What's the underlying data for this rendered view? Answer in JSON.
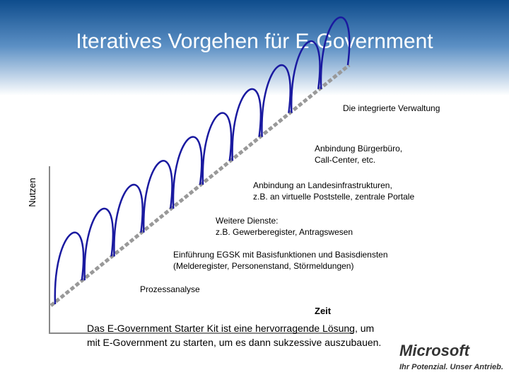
{
  "header": {
    "title": "Iteratives Vorgehen für E-Government"
  },
  "axes": {
    "y_label": "Nutzen",
    "x_label": "Zeit"
  },
  "stages": [
    {
      "lines": [
        "Prozessanalyse"
      ]
    },
    {
      "lines": [
        "Einführung EGSK mit Basisfunktionen und Basisdiensten",
        "(Melderegister, Personenstand, Störmeldungen)"
      ]
    },
    {
      "lines": [
        "Weitere Dienste:",
        "z.B. Gewerberegister, Antragswesen"
      ]
    },
    {
      "lines": [
        "Anbindung an Landesinfrastrukturen,",
        "z.B. an virtuelle Poststelle, zentrale Portale"
      ]
    },
    {
      "lines": [
        "Anbindung Bürgerbüro,",
        "Call-Center, etc."
      ]
    },
    {
      "lines": [
        "Die integrierte Verwaltung"
      ]
    }
  ],
  "footer": {
    "lines": [
      "Das E-Government Starter Kit ist eine hervorragende Lösung, um",
      "mit E-Government zu starten, um es dann sukzessive auszubauen."
    ]
  },
  "logo": {
    "brand": "Microsoft",
    "slogan": "Ihr Potenzial. Unser Antrieb."
  }
}
